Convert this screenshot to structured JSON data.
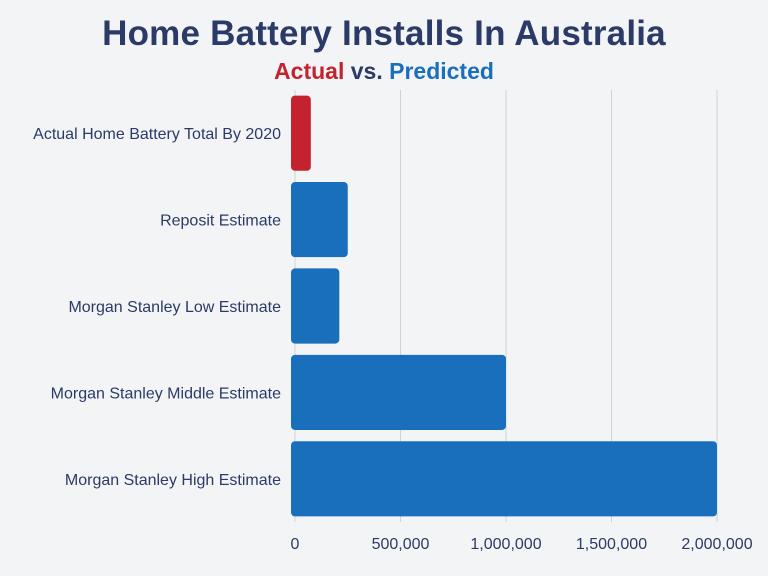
{
  "title_parts": {
    "main": "Home Battery Installs In Australia",
    "actual": "Actual",
    "vs": " vs. ",
    "predicted": "Predicted"
  },
  "colors": {
    "actual": "#c4222e",
    "predicted": "#1a6fbd",
    "text": "#2b3a67",
    "grid": "#cfd3d8"
  },
  "chart_data": {
    "type": "bar",
    "orientation": "horizontal",
    "title": "Home Battery Installs In Australia",
    "subtitle": "Actual vs. Predicted",
    "categories": [
      "Actual Home Battery Total By 2020",
      "Reposit Estimate",
      "Morgan Stanley Low Estimate",
      "Morgan Stanley Middle Estimate",
      "Morgan Stanley High Estimate"
    ],
    "values": [
      75000,
      250000,
      210000,
      1000000,
      2000000
    ],
    "bar_kinds": [
      "actual",
      "predicted",
      "predicted",
      "predicted",
      "predicted"
    ],
    "xlim": [
      0,
      2000000
    ],
    "xticks": [
      0,
      500000,
      1000000,
      1500000,
      2000000
    ],
    "xtick_labels": [
      "0",
      "500,000",
      "1,000,000",
      "1,500,000",
      "2,000,000"
    ],
    "grid": true,
    "xlabel": "",
    "ylabel": ""
  }
}
